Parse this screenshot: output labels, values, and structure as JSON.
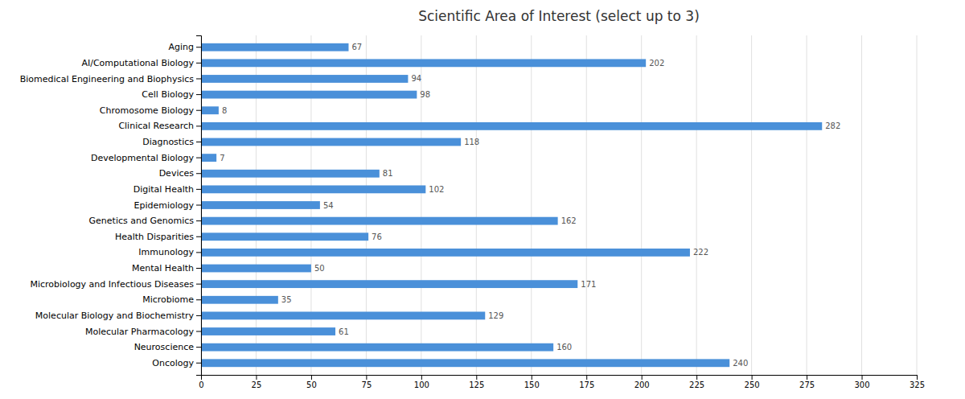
{
  "chart_data": {
    "type": "bar",
    "orientation": "horizontal",
    "title": "Scientific Area of Interest (select up to 3)",
    "categories": [
      "Aging",
      "AI/Computational Biology",
      "Biomedical Engineering and Biophysics",
      "Cell Biology",
      "Chromosome Biology",
      "Clinical Research",
      "Diagnostics",
      "Developmental Biology",
      "Devices",
      "Digital Health",
      "Epidemiology",
      "Genetics and Genomics",
      "Health Disparities",
      "Immunology",
      "Mental Health",
      "Microbiology and Infectious Diseases",
      "Microbiome",
      "Molecular Biology and Biochemistry",
      "Molecular Pharmacology",
      "Neuroscience",
      "Oncology"
    ],
    "values": [
      67,
      202,
      94,
      98,
      8,
      282,
      118,
      7,
      81,
      102,
      54,
      162,
      76,
      222,
      50,
      171,
      35,
      129,
      61,
      160,
      240
    ],
    "color": "#4a90d9",
    "xlim": [
      0,
      325
    ],
    "xticks": [
      0,
      25,
      50,
      75,
      100,
      125,
      150,
      175,
      200,
      225,
      250,
      275,
      300,
      325
    ],
    "grid": true,
    "data_labels": true
  }
}
